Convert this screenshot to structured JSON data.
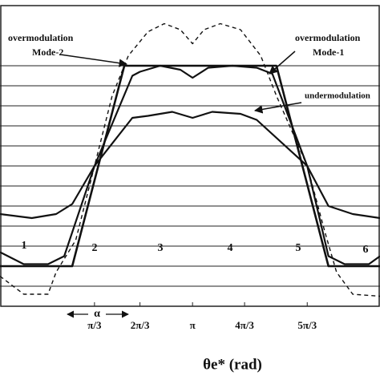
{
  "chart_data": {
    "type": "line",
    "xlabel": "θe* (rad)",
    "xlim": [
      -0.87,
      6.65
    ],
    "ylim": [
      -7,
      8
    ],
    "xticks": [
      {
        "value": 1,
        "label": "π/3"
      },
      {
        "value": 1.9,
        "label": "2π/3"
      },
      {
        "value": 2.94,
        "label": "π"
      },
      {
        "value": 3.97,
        "label": "4π/3"
      },
      {
        "value": 5.21,
        "label": "5π/3"
      }
    ],
    "yticks": [
      -6,
      -5,
      -4,
      -3,
      -2,
      -1,
      0,
      1,
      2,
      3,
      4,
      5
    ],
    "grid": true,
    "series": [
      {
        "color": "#111",
        "dashed": true,
        "width": 1.4,
        "x": [
          -0.87,
          -0.4,
          0.08,
          0.24,
          0.63,
          1.0,
          1.35,
          1.67,
          2.06,
          2.38,
          2.7,
          2.94,
          3.17,
          3.49,
          3.89,
          4.29,
          4.6,
          5.21,
          5.56,
          5.79,
          6.11,
          6.65
        ],
        "values": [
          -5.5,
          -6.4,
          -6.4,
          -5.3,
          -3.7,
          0,
          3.5,
          5.5,
          6.7,
          7.1,
          6.8,
          6.1,
          6.8,
          7.1,
          6.8,
          5.5,
          3.5,
          0,
          -3.3,
          -5.3,
          -6.4,
          -6.5
        ]
      },
      {
        "color": "#111",
        "dashed": false,
        "width": 2.6,
        "x": [
          -0.87,
          0.56,
          1.59,
          4.6,
          5.63,
          6.65
        ],
        "values": [
          -5,
          -5,
          5,
          5,
          -5,
          -5
        ]
      },
      {
        "color": "#111",
        "dashed": false,
        "width": 2.2,
        "x": [
          -0.87,
          -0.4,
          0.08,
          0.4,
          1.0,
          1.75,
          1.9,
          2.3,
          2.7,
          2.94,
          3.25,
          3.73,
          4.21,
          4.52,
          5.21,
          5.63,
          5.95,
          6.43,
          6.65
        ],
        "values": [
          -4.3,
          -4.9,
          -4.9,
          -4.5,
          0,
          4.5,
          4.7,
          5,
          4.8,
          4.4,
          4.9,
          5,
          4.9,
          4.6,
          0,
          -4.5,
          -4.9,
          -4.9,
          -4.5
        ]
      },
      {
        "color": "#111",
        "dashed": false,
        "width": 2.2,
        "x": [
          -0.87,
          -0.24,
          0.24,
          0.56,
          1.0,
          1.75,
          2.06,
          2.54,
          2.94,
          3.33,
          3.89,
          4.21,
          5.21,
          5.63,
          6.11,
          6.65
        ],
        "values": [
          -2.4,
          -2.6,
          -2.4,
          -1.9,
          0,
          2.4,
          2.5,
          2.7,
          2.4,
          2.7,
          2.6,
          2.3,
          0,
          -2,
          -2.4,
          -2.6
        ]
      }
    ],
    "annotations": [
      "overmodulation",
      "Mode-2",
      "overmodulation",
      "Mode-1",
      "undermodulation",
      "1",
      "2",
      "3",
      "4",
      "5",
      "6",
      "α"
    ]
  }
}
